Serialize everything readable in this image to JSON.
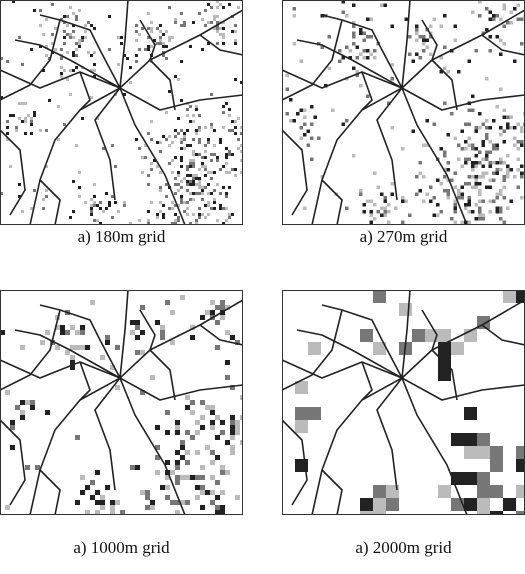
{
  "panels": [
    {
      "caption": "a) 180m grid"
    },
    {
      "caption": "a) 270m grid"
    },
    {
      "caption": "a) 1000m grid"
    },
    {
      "caption": "a) 2000m grid"
    }
  ]
}
